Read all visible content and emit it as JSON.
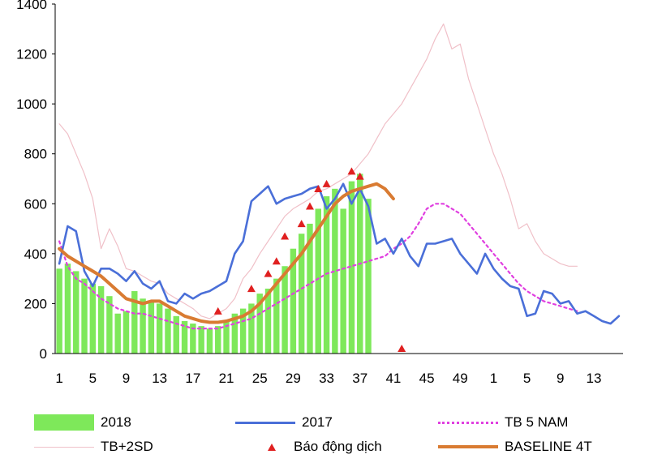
{
  "chart_data": {
    "type": "bar+line",
    "title": "",
    "xlabel": "",
    "ylabel": "",
    "ylim": [
      0,
      1400
    ],
    "yticks": [
      0,
      200,
      400,
      600,
      800,
      1000,
      1200,
      1400
    ],
    "x_tick_labels": [
      "1",
      "5",
      "9",
      "13",
      "17",
      "21",
      "25",
      "29",
      "33",
      "37",
      "41",
      "45",
      "49",
      "1",
      "5",
      "9",
      "13"
    ],
    "n_weeks": 68,
    "x_label_every": 4,
    "series": [
      {
        "name": "2018",
        "type": "bar",
        "color": "#7EE85A",
        "values": [
          340,
          360,
          330,
          300,
          280,
          270,
          230,
          160,
          170,
          250,
          220,
          210,
          200,
          180,
          150,
          130,
          120,
          110,
          100,
          110,
          130,
          160,
          180,
          200,
          240,
          260,
          300,
          350,
          420,
          480,
          520,
          580,
          630,
          660,
          580,
          690,
          720,
          620
        ]
      },
      {
        "name": "2017",
        "type": "line",
        "color": "#4A6FD8",
        "values": [
          360,
          510,
          490,
          330,
          270,
          340,
          340,
          320,
          290,
          330,
          280,
          260,
          290,
          210,
          200,
          240,
          220,
          240,
          250,
          270,
          290,
          400,
          450,
          610,
          640,
          670,
          600,
          620,
          630,
          640,
          660,
          670,
          580,
          620,
          680,
          600,
          660,
          590,
          440,
          460,
          400,
          460,
          390,
          350,
          440,
          440,
          450,
          460,
          400,
          360,
          320,
          400,
          340,
          300,
          270,
          260,
          150,
          160,
          250,
          240,
          200,
          210,
          160,
          170,
          150,
          130,
          120,
          150
        ]
      },
      {
        "name": "TB 5 NAM",
        "type": "line",
        "color": "#E040E0",
        "dash": "3,4",
        "values": [
          450,
          350,
          300,
          280,
          250,
          220,
          200,
          180,
          170,
          160,
          160,
          150,
          140,
          130,
          120,
          110,
          100,
          100,
          100,
          100,
          110,
          120,
          130,
          140,
          160,
          180,
          200,
          220,
          240,
          260,
          280,
          300,
          320,
          330,
          340,
          350,
          360,
          370,
          380,
          390,
          420,
          440,
          470,
          520,
          580,
          600,
          600,
          580,
          560,
          520,
          480,
          440,
          400,
          360,
          320,
          280,
          250,
          230,
          210,
          200,
          190,
          180,
          170
        ]
      },
      {
        "name": "TB+2SD",
        "type": "line",
        "color": "#F0C0C8",
        "values": [
          920,
          880,
          800,
          720,
          620,
          420,
          500,
          430,
          340,
          330,
          310,
          290,
          280,
          240,
          220,
          200,
          180,
          150,
          140,
          160,
          180,
          220,
          300,
          340,
          400,
          450,
          500,
          550,
          580,
          600,
          620,
          650,
          660,
          680,
          700,
          720,
          760,
          800,
          860,
          920,
          960,
          1000,
          1060,
          1120,
          1180,
          1260,
          1320,
          1220,
          1240,
          1100,
          1000,
          900,
          800,
          720,
          620,
          500,
          520,
          450,
          400,
          380,
          360,
          350,
          350
        ]
      },
      {
        "name": "BASELINE 4T",
        "type": "line",
        "color": "#D97B32",
        "values": [
          420,
          390,
          370,
          350,
          330,
          310,
          280,
          250,
          220,
          210,
          200,
          210,
          210,
          190,
          170,
          150,
          140,
          130,
          125,
          125,
          130,
          140,
          150,
          170,
          200,
          240,
          280,
          320,
          360,
          400,
          450,
          500,
          550,
          600,
          630,
          650,
          660,
          670,
          680,
          660,
          620
        ]
      },
      {
        "name": "Báo động dịch",
        "type": "scatter",
        "color": "#E02020",
        "points": [
          [
            20,
            150
          ],
          [
            24,
            240
          ],
          [
            26,
            300
          ],
          [
            27,
            350
          ],
          [
            28,
            450
          ],
          [
            30,
            500
          ],
          [
            31,
            570
          ],
          [
            32,
            640
          ],
          [
            33,
            660
          ],
          [
            36,
            710
          ],
          [
            37,
            690
          ],
          [
            42,
            0
          ]
        ]
      }
    ],
    "legend_position": "bottom",
    "grid": false
  }
}
